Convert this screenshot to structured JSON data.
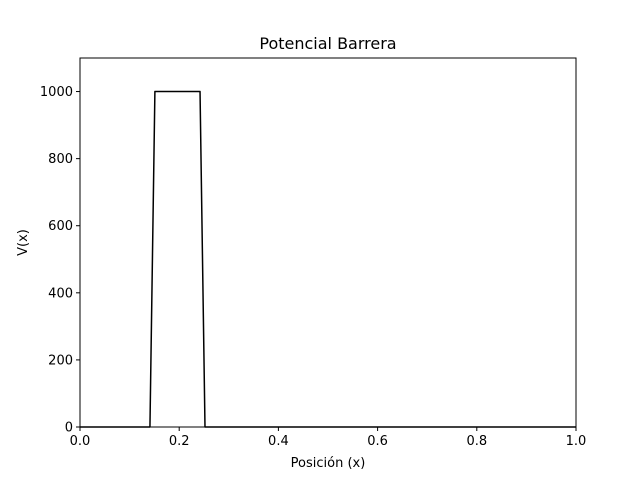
{
  "chart_data": {
    "type": "line",
    "title": "Potencial Barrera",
    "xlabel": "Posición (x)",
    "ylabel": "V(x)",
    "xlim": [
      0,
      1
    ],
    "ylim": [
      0,
      1100
    ],
    "grid": false,
    "legend": "none",
    "x_ticks": [
      0.0,
      0.2,
      0.4,
      0.6,
      0.8,
      1.0
    ],
    "x_tick_labels": [
      "0.0",
      "0.2",
      "0.4",
      "0.6",
      "0.8",
      "1.0"
    ],
    "y_ticks": [
      0,
      200,
      400,
      600,
      800,
      1000
    ],
    "y_tick_labels": [
      "0",
      "200",
      "400",
      "600",
      "800",
      "1000"
    ],
    "series": [
      {
        "color": "#000000",
        "x": [
          0.0,
          0.141,
          0.151,
          0.242,
          0.252,
          1.0
        ],
        "y": [
          0,
          0,
          1000,
          1000,
          0,
          0
        ]
      }
    ]
  }
}
